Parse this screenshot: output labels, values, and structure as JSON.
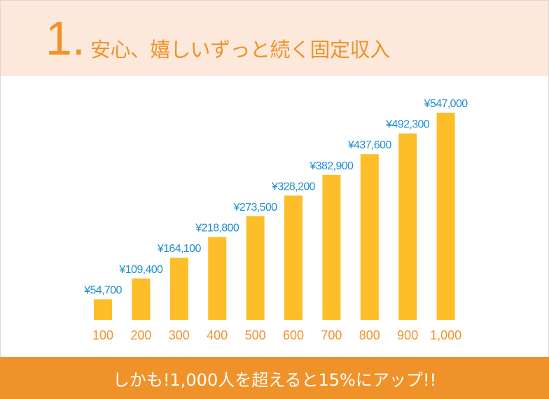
{
  "header": {
    "number": "1.",
    "title": "安心、嬉しいずっと続く固定収入"
  },
  "footer": {
    "text": "しかも!1,000人を超えると15%にアップ!!"
  },
  "colors": {
    "bar": "#fdbe2a",
    "value_label": "#1f8fce",
    "category_label": "#f0922a",
    "header_bg": "#fce9dc",
    "footer_bg": "#f0922a"
  },
  "chart_data": {
    "type": "bar",
    "categories": [
      "100",
      "200",
      "300",
      "400",
      "500",
      "600",
      "700",
      "800",
      "900",
      "1,000"
    ],
    "values": [
      54700,
      109400,
      164100,
      218800,
      273500,
      328200,
      382900,
      437600,
      492300,
      547000
    ],
    "value_labels": [
      "¥54,700",
      "¥109,400",
      "¥164,100",
      "¥218,800",
      "¥273,500",
      "¥328,200",
      "¥382,900",
      "¥437,600",
      "¥492,300",
      "¥547,000"
    ],
    "ylim": [
      0,
      547000
    ],
    "grid": false,
    "legend": "none"
  }
}
